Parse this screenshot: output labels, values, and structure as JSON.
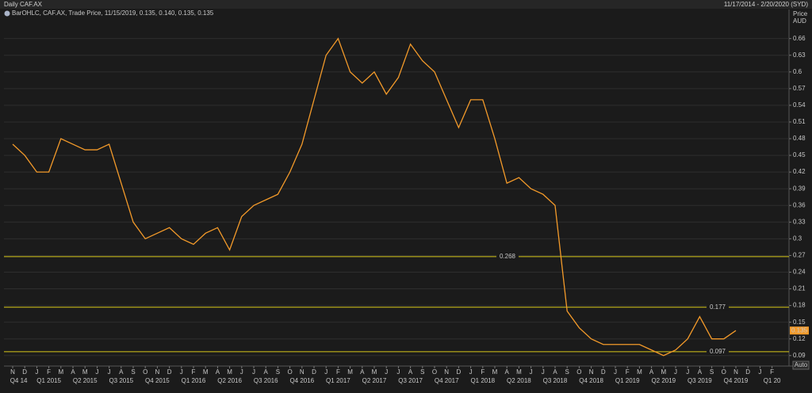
{
  "chart_data": {
    "type": "line",
    "title": "Daily CAF.AX",
    "date_range": "11/17/2014 - 2/20/2020 (SYD)",
    "legend_text": "BarOHLC, CAF.AX, Trade Price, 11/15/2019, 0.135, 0.140, 0.135, 0.135",
    "y_axis_label": "Price",
    "y_axis_unit": "AUD",
    "scale_button": "Auto",
    "categories": [
      "N",
      "D",
      "J",
      "F",
      "M",
      "A",
      "M",
      "J",
      "J",
      "A",
      "S",
      "O",
      "N",
      "D",
      "J",
      "F",
      "M",
      "A",
      "M",
      "J",
      "J",
      "A",
      "S",
      "O",
      "N",
      "D",
      "J",
      "F",
      "M",
      "A",
      "M",
      "J",
      "J",
      "A",
      "S",
      "O",
      "N",
      "D",
      "J",
      "F",
      "M",
      "A",
      "M",
      "J",
      "J",
      "A",
      "S",
      "O",
      "N",
      "D",
      "J",
      "F",
      "M",
      "A",
      "M",
      "J",
      "J",
      "A",
      "S",
      "O",
      "N",
      "D",
      "J",
      "F"
    ],
    "quarters": [
      "Q4 14",
      "Q1 2015",
      "Q2 2015",
      "Q3 2015",
      "Q4 2015",
      "Q1 2016",
      "Q2 2016",
      "Q3 2016",
      "Q4 2016",
      "Q1 2017",
      "Q2 2017",
      "Q3 2017",
      "Q4 2017",
      "Q1 2018",
      "Q2 2018",
      "Q3 2018",
      "Q4 2018",
      "Q1 2019",
      "Q2 2019",
      "Q3 2019",
      "Q4 2019",
      "Q1 20"
    ],
    "series": [
      {
        "name": "CAF.AX",
        "color": "#f39a2a",
        "values": [
          0.47,
          0.45,
          0.42,
          0.42,
          0.48,
          0.47,
          0.46,
          0.46,
          0.47,
          0.4,
          0.33,
          0.3,
          0.31,
          0.32,
          0.3,
          0.29,
          0.31,
          0.32,
          0.28,
          0.34,
          0.36,
          0.37,
          0.38,
          0.42,
          0.47,
          0.55,
          0.63,
          0.66,
          0.6,
          0.58,
          0.6,
          0.56,
          0.59,
          0.65,
          0.62,
          0.6,
          0.55,
          0.5,
          0.55,
          0.55,
          0.48,
          0.4,
          0.41,
          0.39,
          0.38,
          0.36,
          0.17,
          0.14,
          0.12,
          0.11,
          0.11,
          0.11,
          0.11,
          0.1,
          0.09,
          0.1,
          0.12,
          0.16,
          0.12,
          0.12,
          0.135,
          null,
          null,
          null
        ]
      }
    ],
    "hlines": [
      0.268,
      0.177,
      0.097
    ],
    "hline_color": "#d8c81a",
    "ylim": [
      0.074,
      0.698
    ],
    "yticks": [
      0.09,
      0.12,
      0.15,
      0.18,
      0.21,
      0.24,
      0.27,
      0.3,
      0.33,
      0.36,
      0.39,
      0.42,
      0.45,
      0.48,
      0.51,
      0.54,
      0.57,
      0.6,
      0.63,
      0.66
    ],
    "grid": true
  }
}
